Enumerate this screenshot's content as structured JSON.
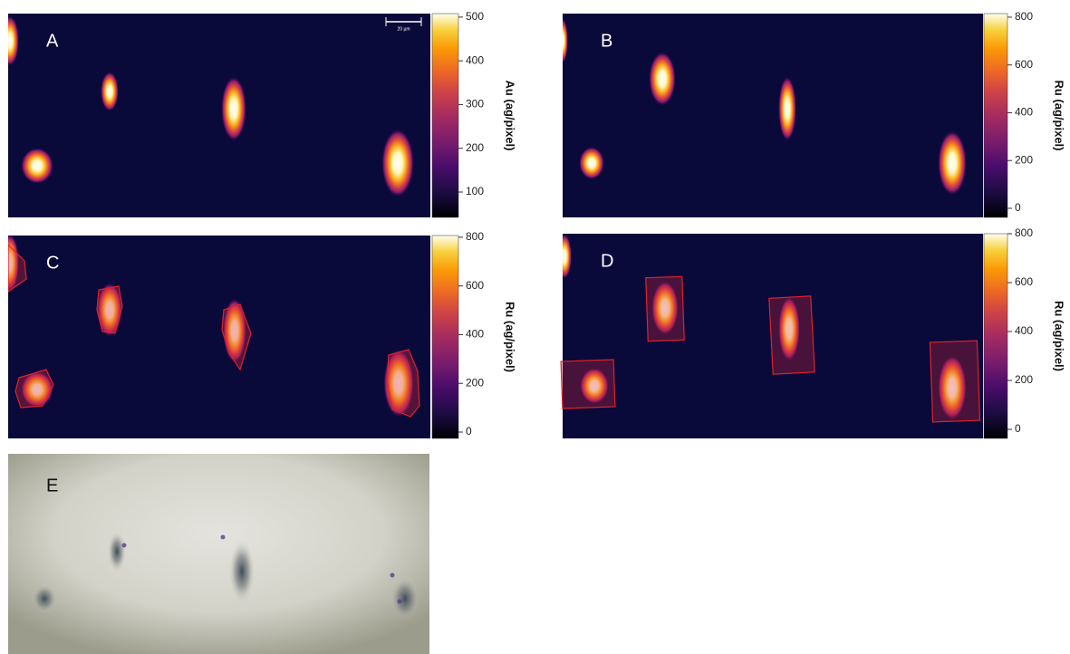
{
  "scale_bar": "20 µm",
  "panels": [
    {
      "label": "A",
      "colorbar": {
        "label": "Au (ag/pixel)",
        "lim": [
          42,
          508
        ],
        "ticks": [
          100,
          200,
          300,
          400,
          500
        ]
      }
    },
    {
      "label": "B",
      "colorbar": {
        "label": "Ru (ag/pixel)",
        "lim": [
          -38,
          815
        ],
        "ticks": [
          0,
          200,
          400,
          600,
          800
        ]
      }
    },
    {
      "label": "C",
      "colorbar": {
        "label": "Ru (ag/pixel)",
        "lim": [
          -26,
          807
        ],
        "ticks": [
          0,
          200,
          400,
          600,
          800
        ]
      }
    },
    {
      "label": "D",
      "colorbar": {
        "label": "Ru (ag/pixel)",
        "lim": [
          -37,
          800
        ],
        "ticks": [
          0,
          200,
          400,
          600,
          800
        ]
      }
    },
    {
      "label": "E"
    }
  ]
}
